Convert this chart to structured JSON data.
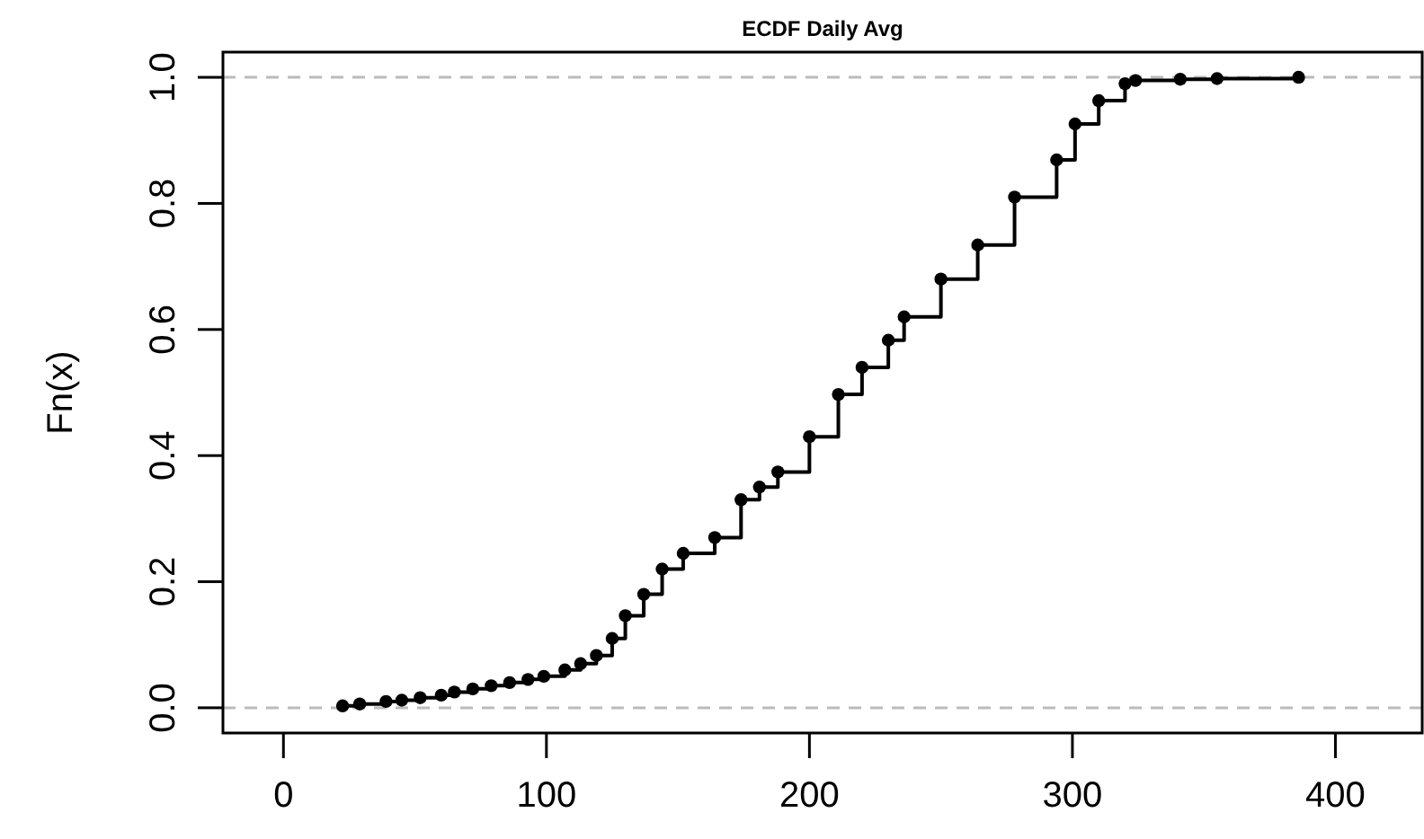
{
  "chart_data": {
    "type": "step",
    "title": "ECDF Daily Avg",
    "ylabel": "Fn(x)",
    "xlim": [
      -23,
      433
    ],
    "xticks": [
      0,
      100,
      200,
      300,
      400
    ],
    "ylim": [
      -0.04,
      1.04
    ],
    "yticks": [
      {
        "value": 0,
        "label": "0.0"
      },
      {
        "value": 0.2,
        "label": "0.2"
      },
      {
        "value": 0.4,
        "label": "0.4"
      },
      {
        "value": 0.6,
        "label": "0.6"
      },
      {
        "value": 0.8,
        "label": "0.8"
      },
      {
        "value": 1,
        "label": "1.0"
      }
    ],
    "marker": "circle",
    "grid": false,
    "ref_lines": [
      {
        "axis": "y",
        "value": 0,
        "color": "#bbbbbb",
        "line_style": "dashed"
      },
      {
        "axis": "y",
        "value": 1,
        "color": "#bbbbbb",
        "line_style": "dashed"
      }
    ],
    "series": [
      {
        "color": "#000000",
        "x": [
          22.5,
          29,
          39,
          45,
          52,
          60,
          65,
          72,
          79,
          86,
          93,
          99,
          107,
          113,
          119,
          125,
          130,
          137,
          144,
          152,
          164,
          174,
          181,
          188,
          200,
          211,
          220,
          230,
          236,
          250,
          264,
          278,
          294,
          301,
          310,
          320,
          324,
          341,
          355,
          386
        ],
        "values": [
          0.003,
          0.006,
          0.01,
          0.012,
          0.016,
          0.02,
          0.025,
          0.03,
          0.035,
          0.04,
          0.045,
          0.05,
          0.06,
          0.07,
          0.083,
          0.11,
          0.146,
          0.18,
          0.22,
          0.245,
          0.27,
          0.33,
          0.35,
          0.374,
          0.43,
          0.497,
          0.54,
          0.583,
          0.62,
          0.68,
          0.734,
          0.81,
          0.869,
          0.926,
          0.963,
          0.99,
          0.995,
          0.997,
          0.998,
          1.0
        ]
      }
    ]
  }
}
